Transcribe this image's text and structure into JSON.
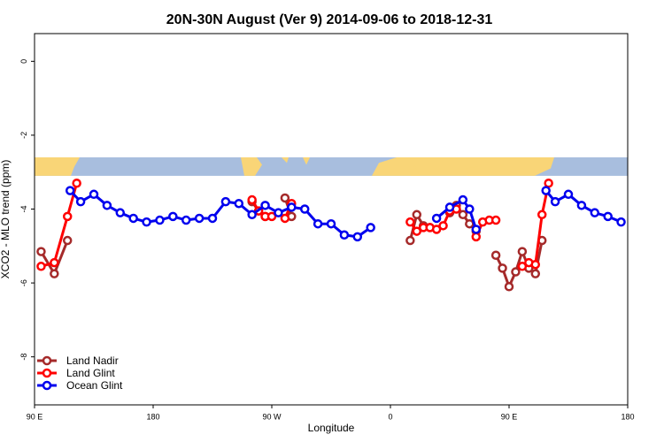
{
  "chart_data": {
    "type": "line",
    "title": "20N-30N August (Ver 9)   2014-09-06 to 2018-12-31",
    "xlabel": "Longitude",
    "ylabel": "XCO2 - MLO trend (ppm)",
    "xlim": [
      90,
      540
    ],
    "ylim": [
      -9.3,
      0.75
    ],
    "x_ticks": [
      {
        "value": 90,
        "label": "90 E"
      },
      {
        "value": 180,
        "label": "180"
      },
      {
        "value": 270,
        "label": "90 W"
      },
      {
        "value": 360,
        "label": "0"
      },
      {
        "value": 450,
        "label": "90 E"
      },
      {
        "value": 540,
        "label": "180"
      }
    ],
    "y_ticks": [
      {
        "value": 0,
        "label": "0"
      },
      {
        "value": -2,
        "label": "-2"
      },
      {
        "value": -4,
        "label": "-4"
      },
      {
        "value": -6,
        "label": "-6"
      },
      {
        "value": -8,
        "label": "-8"
      }
    ],
    "legend_position": "bottom-left",
    "map_strip": {
      "y_top": -2.6,
      "y_bottom": -3.1,
      "ocean_color": "#a8bede",
      "land_color": "#f9d577"
    },
    "series": [
      {
        "name": "Land Nadir",
        "color": "#a52a2a",
        "segments": [
          [
            [
              95,
              -5.15
            ],
            [
              105,
              -5.75
            ],
            [
              115,
              -4.85
            ]
          ],
          [
            [
              255,
              -3.8
            ],
            [
              260,
              -4.05
            ],
            [
              265,
              -4.2
            ]
          ],
          [
            [
              280,
              -3.7
            ],
            [
              285,
              -4.2
            ]
          ],
          [
            [
              375,
              -4.85
            ],
            [
              380,
              -4.15
            ],
            [
              385,
              -4.45
            ],
            [
              390,
              -4.5
            ]
          ],
          [
            [
              405,
              -4.1
            ],
            [
              410,
              -3.9
            ],
            [
              415,
              -4.15
            ],
            [
              420,
              -4.4
            ],
            [
              425,
              -4.6
            ]
          ],
          [
            [
              440,
              -5.25
            ],
            [
              445,
              -5.6
            ],
            [
              450,
              -6.1
            ],
            [
              455,
              -5.7
            ],
            [
              460,
              -5.15
            ],
            [
              465,
              -5.6
            ],
            [
              470,
              -5.75
            ],
            [
              475,
              -4.85
            ]
          ]
        ]
      },
      {
        "name": "Land Glint",
        "color": "#ff0000",
        "segments": [
          [
            [
              95,
              -5.55
            ],
            [
              105,
              -5.45
            ],
            [
              115,
              -4.2
            ],
            [
              122,
              -3.3
            ]
          ],
          [
            [
              255,
              -3.75
            ],
            [
              260,
              -4.05
            ],
            [
              265,
              -4.2
            ],
            [
              270,
              -4.2
            ]
          ],
          [
            [
              280,
              -4.25
            ],
            [
              285,
              -3.85
            ]
          ],
          [
            [
              375,
              -4.35
            ],
            [
              380,
              -4.6
            ],
            [
              385,
              -4.5
            ],
            [
              390,
              -4.5
            ],
            [
              395,
              -4.55
            ],
            [
              400,
              -4.45
            ],
            [
              405,
              -4.05
            ],
            [
              410,
              -4.0
            ]
          ],
          [
            [
              425,
              -4.75
            ],
            [
              430,
              -4.35
            ],
            [
              435,
              -4.3
            ],
            [
              440,
              -4.3
            ]
          ],
          [
            [
              460,
              -5.55
            ],
            [
              465,
              -5.45
            ],
            [
              470,
              -5.5
            ],
            [
              475,
              -4.15
            ],
            [
              480,
              -3.3
            ]
          ]
        ]
      },
      {
        "name": "Ocean Glint",
        "color": "#0000ee",
        "segments": [
          [
            [
              117,
              -3.5
            ],
            [
              125,
              -3.8
            ],
            [
              135,
              -3.6
            ],
            [
              145,
              -3.9
            ],
            [
              155,
              -4.1
            ],
            [
              165,
              -4.25
            ],
            [
              175,
              -4.35
            ],
            [
              185,
              -4.3
            ],
            [
              195,
              -4.2
            ],
            [
              205,
              -4.3
            ],
            [
              215,
              -4.25
            ],
            [
              225,
              -4.25
            ],
            [
              235,
              -3.8
            ],
            [
              245,
              -3.85
            ],
            [
              255,
              -4.15
            ],
            [
              265,
              -3.9
            ],
            [
              275,
              -4.1
            ],
            [
              285,
              -3.95
            ],
            [
              295,
              -4.0
            ],
            [
              305,
              -4.4
            ],
            [
              315,
              -4.4
            ],
            [
              325,
              -4.7
            ],
            [
              335,
              -4.75
            ],
            [
              345,
              -4.5
            ]
          ],
          [
            [
              395,
              -4.25
            ],
            [
              405,
              -3.95
            ],
            [
              415,
              -3.75
            ],
            [
              420,
              -4.0
            ],
            [
              425,
              -4.55
            ]
          ],
          [
            [
              478,
              -3.5
            ],
            [
              485,
              -3.8
            ],
            [
              495,
              -3.6
            ],
            [
              505,
              -3.9
            ],
            [
              515,
              -4.1
            ],
            [
              525,
              -4.2
            ],
            [
              535,
              -4.35
            ]
          ]
        ]
      }
    ]
  }
}
